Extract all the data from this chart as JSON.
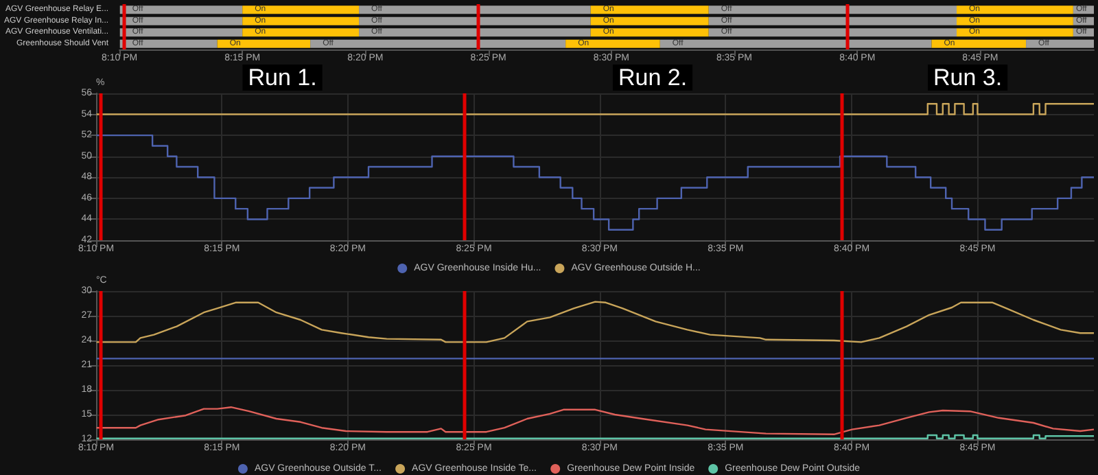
{
  "chart_data": [
    {
      "type": "bar",
      "orientation": "horizontal",
      "categories": [
        "AGV Greenhouse Relay E...",
        "AGV Greenhouse Relay In...",
        "AGV Greenhouse Ventilati...",
        "Greenhouse Should Vent"
      ],
      "xlim": [
        20.1667,
        20.827
      ],
      "xticks": [
        {
          "value": 20.1667,
          "label": "8:10 PM"
        },
        {
          "value": 20.25,
          "label": "8:15 PM"
        },
        {
          "value": 20.3333,
          "label": "8:20 PM"
        },
        {
          "value": 20.4167,
          "label": "8:25 PM"
        },
        {
          "value": 20.5,
          "label": "8:30 PM"
        },
        {
          "value": 20.5833,
          "label": "8:35 PM"
        },
        {
          "value": 20.6667,
          "label": "8:40 PM"
        },
        {
          "value": 20.75,
          "label": "8:45 PM"
        }
      ],
      "series": [
        {
          "color": "#9e9e9e",
          "base": [
            20.167,
            20.167,
            20.167,
            20.167
          ],
          "values": [
            0.083,
            0.083,
            0.083,
            0.066
          ],
          "value_labels": [
            "Off",
            "Off",
            "Off",
            "Off"
          ]
        },
        {
          "color": "#ffc107",
          "base": [
            20.25,
            20.25,
            20.25,
            20.233
          ],
          "values": [
            0.079,
            0.079,
            0.079,
            0.063
          ],
          "value_labels": [
            "On",
            "On",
            "On",
            "On"
          ]
        },
        {
          "color": "#9e9e9e",
          "base": [
            20.329,
            20.329,
            20.329,
            20.296
          ],
          "values": [
            0.157,
            0.157,
            0.157,
            0.173
          ],
          "value_labels": [
            "Off",
            "Off",
            "Off",
            "Off"
          ]
        },
        {
          "color": "#ffc107",
          "base": [
            20.486,
            20.486,
            20.486,
            20.469
          ],
          "values": [
            0.08,
            0.08,
            0.08,
            0.064
          ],
          "value_labels": [
            "On",
            "On",
            "On",
            "On"
          ]
        },
        {
          "color": "#9e9e9e",
          "base": [
            20.566,
            20.566,
            20.566,
            20.533
          ],
          "values": [
            0.168,
            0.168,
            0.168,
            0.184
          ],
          "value_labels": [
            "Off",
            "Off",
            "Off",
            "Off"
          ]
        },
        {
          "color": "#ffc107",
          "base": [
            20.734,
            20.734,
            20.734,
            20.717
          ],
          "values": [
            0.079,
            0.079,
            0.079,
            0.064
          ],
          "value_labels": [
            "On",
            "On",
            "On",
            "On"
          ]
        },
        {
          "color": "#9e9e9e",
          "base": [
            20.813,
            20.813,
            20.813,
            20.781
          ],
          "values": [
            0.014,
            0.014,
            0.014,
            0.046
          ],
          "value_labels": [
            "Off",
            "Off",
            "Off",
            "Off"
          ]
        }
      ],
      "ref_lines": [
        {
          "axis": "x",
          "value": 20.17,
          "color": "#e00000"
        },
        {
          "axis": "x",
          "value": 20.41,
          "color": "#e00000"
        },
        {
          "axis": "x",
          "value": 20.66,
          "color": "#e00000"
        }
      ]
    },
    {
      "type": "line",
      "ylabel": "%",
      "annotations": [
        "Run 1.",
        "Run 2.",
        "Run 3."
      ],
      "xlim": [
        20.1667,
        20.827
      ],
      "xticks": [
        {
          "value": 20.1667,
          "label": "8:10 PM"
        },
        {
          "value": 20.25,
          "label": "8:15 PM"
        },
        {
          "value": 20.3333,
          "label": "8:20 PM"
        },
        {
          "value": 20.4167,
          "label": "8:25 PM"
        },
        {
          "value": 20.5,
          "label": "8:30 PM"
        },
        {
          "value": 20.5833,
          "label": "8:35 PM"
        },
        {
          "value": 20.6667,
          "label": "8:40 PM"
        },
        {
          "value": 20.75,
          "label": "8:45 PM"
        }
      ],
      "ylim": [
        42,
        56
      ],
      "yticks": [
        42,
        44,
        46,
        48,
        50,
        52,
        54,
        56
      ],
      "grid": true,
      "legend": "bottom",
      "marker": "none",
      "series": [
        {
          "name": "AGV Greenhouse Inside Hu...",
          "type": "step",
          "color": "#4e63b0",
          "x": [
            20.167,
            20.204,
            20.214,
            20.22,
            20.234,
            20.245,
            20.259,
            20.267,
            20.28,
            20.294,
            20.308,
            20.324,
            20.347,
            20.389,
            20.443,
            20.46,
            20.474,
            20.482,
            20.488,
            20.496,
            20.506,
            20.522,
            20.526,
            20.538,
            20.554,
            20.571,
            20.598,
            20.659,
            20.69,
            20.709,
            20.719,
            20.729,
            20.733,
            20.744,
            20.755,
            20.766,
            20.786,
            20.803,
            20.812,
            20.819,
            20.827
          ],
          "values": [
            52,
            51,
            50,
            49,
            48,
            46,
            45,
            44,
            45,
            46,
            47,
            48,
            49,
            50,
            49,
            48,
            47,
            46,
            45,
            44,
            43,
            44,
            45,
            46,
            47,
            48,
            49,
            50,
            49,
            48,
            47,
            46,
            45,
            44,
            43,
            44,
            45,
            46,
            47,
            48,
            48
          ]
        },
        {
          "name": "AGV Greenhouse Outside H...",
          "type": "step",
          "color": "#c9a55a",
          "x": [
            20.167,
            20.717,
            20.723,
            20.727,
            20.731,
            20.735,
            20.741,
            20.747,
            20.75,
            20.787,
            20.791,
            20.795,
            20.827
          ],
          "values": [
            54,
            55,
            54,
            55,
            54,
            55,
            54,
            55,
            54,
            55,
            54,
            55,
            55
          ]
        }
      ],
      "ref_lines": [
        {
          "axis": "x",
          "value": 20.17,
          "color": "#e00000"
        },
        {
          "axis": "x",
          "value": 20.41,
          "color": "#e00000"
        },
        {
          "axis": "x",
          "value": 20.66,
          "color": "#e00000"
        }
      ]
    },
    {
      "type": "line",
      "ylabel": "°C",
      "xlim": [
        20.1667,
        20.827
      ],
      "xticks": [
        {
          "value": 20.1667,
          "label": "8:10 PM"
        },
        {
          "value": 20.25,
          "label": "8:15 PM"
        },
        {
          "value": 20.3333,
          "label": "8:20 PM"
        },
        {
          "value": 20.4167,
          "label": "8:25 PM"
        },
        {
          "value": 20.5,
          "label": "8:30 PM"
        },
        {
          "value": 20.5833,
          "label": "8:35 PM"
        },
        {
          "value": 20.6667,
          "label": "8:40 PM"
        },
        {
          "value": 20.75,
          "label": "8:45 PM"
        }
      ],
      "ylim": [
        12,
        30
      ],
      "yticks": [
        12,
        15,
        18,
        21,
        24,
        27,
        30
      ],
      "grid": true,
      "legend": "bottom",
      "marker": "none",
      "series": [
        {
          "name": "AGV Greenhouse Outside T...",
          "type": "step",
          "color": "#4e63b0",
          "x": [
            20.167,
            20.827
          ],
          "values": [
            21.8,
            21.8
          ]
        },
        {
          "name": "AGV Greenhouse Inside Te...",
          "color": "#c9a55a",
          "x": [
            20.167,
            20.193,
            20.196,
            20.205,
            20.22,
            20.238,
            20.247,
            20.259,
            20.274,
            20.286,
            20.302,
            20.316,
            20.329,
            20.347,
            20.359,
            20.395,
            20.398,
            20.425,
            20.437,
            20.452,
            20.467,
            20.483,
            20.497,
            20.504,
            20.515,
            20.537,
            20.558,
            20.573,
            20.606,
            20.61,
            20.655,
            20.673,
            20.685,
            20.703,
            20.718,
            20.733,
            20.739,
            20.76,
            20.769,
            20.787,
            20.805,
            20.818,
            20.827
          ],
          "values": [
            23.8,
            23.8,
            24.3,
            24.7,
            25.7,
            27.4,
            27.9,
            28.6,
            28.6,
            27.4,
            26.5,
            25.3,
            24.9,
            24.4,
            24.2,
            24.1,
            23.8,
            23.8,
            24.3,
            26.3,
            26.8,
            27.9,
            28.7,
            28.6,
            27.9,
            26.3,
            25.3,
            24.7,
            24.3,
            24.1,
            24.0,
            23.8,
            24.3,
            25.7,
            27.1,
            28.0,
            28.6,
            28.6,
            27.9,
            26.5,
            25.3,
            24.9,
            24.9
          ]
        },
        {
          "name": "Greenhouse Dew Point Inside",
          "color": "#e0615a",
          "x": [
            20.167,
            20.193,
            20.196,
            20.208,
            20.226,
            20.238,
            20.247,
            20.256,
            20.268,
            20.286,
            20.302,
            20.316,
            20.332,
            20.359,
            20.386,
            20.395,
            20.398,
            20.425,
            20.437,
            20.452,
            20.467,
            20.476,
            20.497,
            20.51,
            20.528,
            20.558,
            20.57,
            20.61,
            20.655,
            20.667,
            20.685,
            20.703,
            20.718,
            20.727,
            20.745,
            20.764,
            20.787,
            20.8,
            20.818,
            20.827
          ],
          "values": [
            13.4,
            13.4,
            13.7,
            14.4,
            14.9,
            15.7,
            15.7,
            15.9,
            15.4,
            14.5,
            14.1,
            13.4,
            13.0,
            12.9,
            12.9,
            13.3,
            12.9,
            12.9,
            13.4,
            14.5,
            15.1,
            15.6,
            15.6,
            15.0,
            14.5,
            13.7,
            13.2,
            12.7,
            12.6,
            13.2,
            13.7,
            14.6,
            15.3,
            15.5,
            15.4,
            14.6,
            14.0,
            13.3,
            13.0,
            13.2
          ]
        },
        {
          "name": "Greenhouse Dew Point Outside",
          "type": "step",
          "color": "#5ec4a6",
          "x": [
            20.167,
            20.717,
            20.723,
            20.727,
            20.731,
            20.735,
            20.741,
            20.747,
            20.75,
            20.787,
            20.791,
            20.795,
            20.827
          ],
          "values": [
            12.1,
            12.5,
            12.1,
            12.5,
            12.1,
            12.5,
            12.1,
            12.5,
            12.1,
            12.5,
            12.1,
            12.4,
            12.4
          ]
        }
      ],
      "ref_lines": [
        {
          "axis": "x",
          "value": 20.17,
          "color": "#e00000"
        },
        {
          "axis": "x",
          "value": 20.41,
          "color": "#e00000"
        },
        {
          "axis": "x",
          "value": 20.66,
          "color": "#e00000"
        }
      ]
    }
  ]
}
